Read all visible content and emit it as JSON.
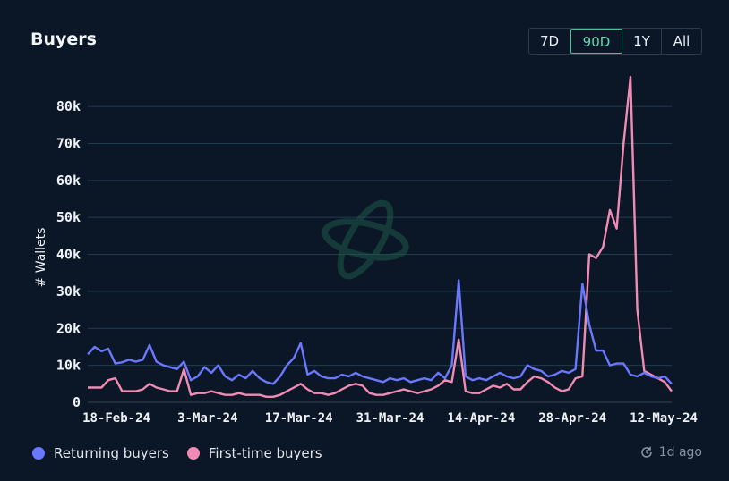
{
  "header": {
    "title": "Buyers",
    "ranges": [
      "7D",
      "90D",
      "1Y",
      "All"
    ],
    "active_range": "90D"
  },
  "footer": {
    "updated": "1d ago"
  },
  "colors": {
    "background": "#0b1626",
    "returning": "#6a78ff",
    "first_time": "#f08cb4",
    "grid": "#1f3f4f",
    "active": "#3fc79a"
  },
  "icons": {
    "watermark": "orbit-logo-icon",
    "updated": "refresh-clock-icon"
  },
  "chart_data": {
    "type": "line",
    "title": "Buyers",
    "ylabel": "# Wallets",
    "xlabel": "",
    "ylim": [
      0,
      88000
    ],
    "yticks": [
      0,
      10000,
      20000,
      30000,
      40000,
      50000,
      60000,
      70000,
      80000
    ],
    "ytick_labels": [
      "0",
      "10k",
      "20k",
      "30k",
      "40k",
      "50k",
      "60k",
      "70k",
      "80k"
    ],
    "xtick_labels": [
      "18-Feb-24",
      "3-Mar-24",
      "17-Mar-24",
      "31-Mar-24",
      "14-Apr-24",
      "28-Apr-24",
      "12-May-24"
    ],
    "grid": true,
    "legend_position": "bottom-left",
    "series": [
      {
        "name": "Returning buyers",
        "color": "#6a78ff",
        "values": [
          13000,
          15000,
          13800,
          14500,
          10500,
          10800,
          11500,
          11000,
          11500,
          15500,
          11000,
          10000,
          9500,
          9000,
          11000,
          6000,
          7000,
          9500,
          8000,
          10000,
          7000,
          6000,
          7500,
          6500,
          8500,
          6500,
          5500,
          5000,
          7000,
          10000,
          12000,
          16000,
          7500,
          8500,
          7000,
          6500,
          6500,
          7500,
          7000,
          8000,
          7000,
          6500,
          6000,
          5500,
          6500,
          6000,
          6500,
          5500,
          6000,
          6500,
          6000,
          8000,
          6500,
          10000,
          33000,
          7000,
          6000,
          6500,
          6000,
          7000,
          8000,
          7000,
          6500,
          7000,
          10000,
          9000,
          8500,
          7000,
          7500,
          8500,
          8000,
          9000,
          32000,
          21000,
          14000,
          14000,
          10000,
          10500,
          10500,
          7500,
          7000,
          8000,
          7000,
          6500,
          7000,
          5000
        ]
      },
      {
        "name": "First-time buyers",
        "color": "#f08cb4",
        "values": [
          4000,
          4000,
          4000,
          6000,
          6500,
          3000,
          3000,
          3000,
          3500,
          5000,
          4000,
          3500,
          3000,
          3000,
          9000,
          2000,
          2500,
          2500,
          3000,
          2500,
          2000,
          2000,
          2500,
          2000,
          2000,
          2000,
          1500,
          1500,
          2000,
          3000,
          4000,
          5000,
          3500,
          2500,
          2500,
          2000,
          2500,
          3500,
          4500,
          5000,
          4500,
          2500,
          2000,
          2000,
          2500,
          3000,
          3500,
          3000,
          2500,
          3000,
          3500,
          4500,
          6000,
          5500,
          17000,
          3000,
          2500,
          2500,
          3500,
          4500,
          4000,
          5000,
          3500,
          3500,
          5500,
          7000,
          6500,
          5500,
          4000,
          3000,
          3500,
          6500,
          7000,
          40000,
          39000,
          42000,
          52000,
          47000,
          70000,
          88000,
          25000,
          8500,
          7500,
          6500,
          5500,
          3000
        ]
      }
    ]
  }
}
